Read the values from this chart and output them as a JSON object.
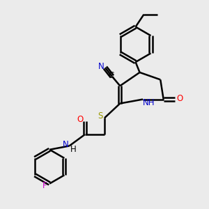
{
  "bg_color": "#ebebeb",
  "bond_color": "#000000",
  "n_color": "#0000cc",
  "o_color": "#ff0000",
  "s_color": "#999900",
  "f_color": "#cc00cc",
  "line_width": 1.8,
  "figsize": [
    3.0,
    3.0
  ],
  "dpi": 100,
  "xlim": [
    0,
    10
  ],
  "ylim": [
    0,
    10
  ]
}
